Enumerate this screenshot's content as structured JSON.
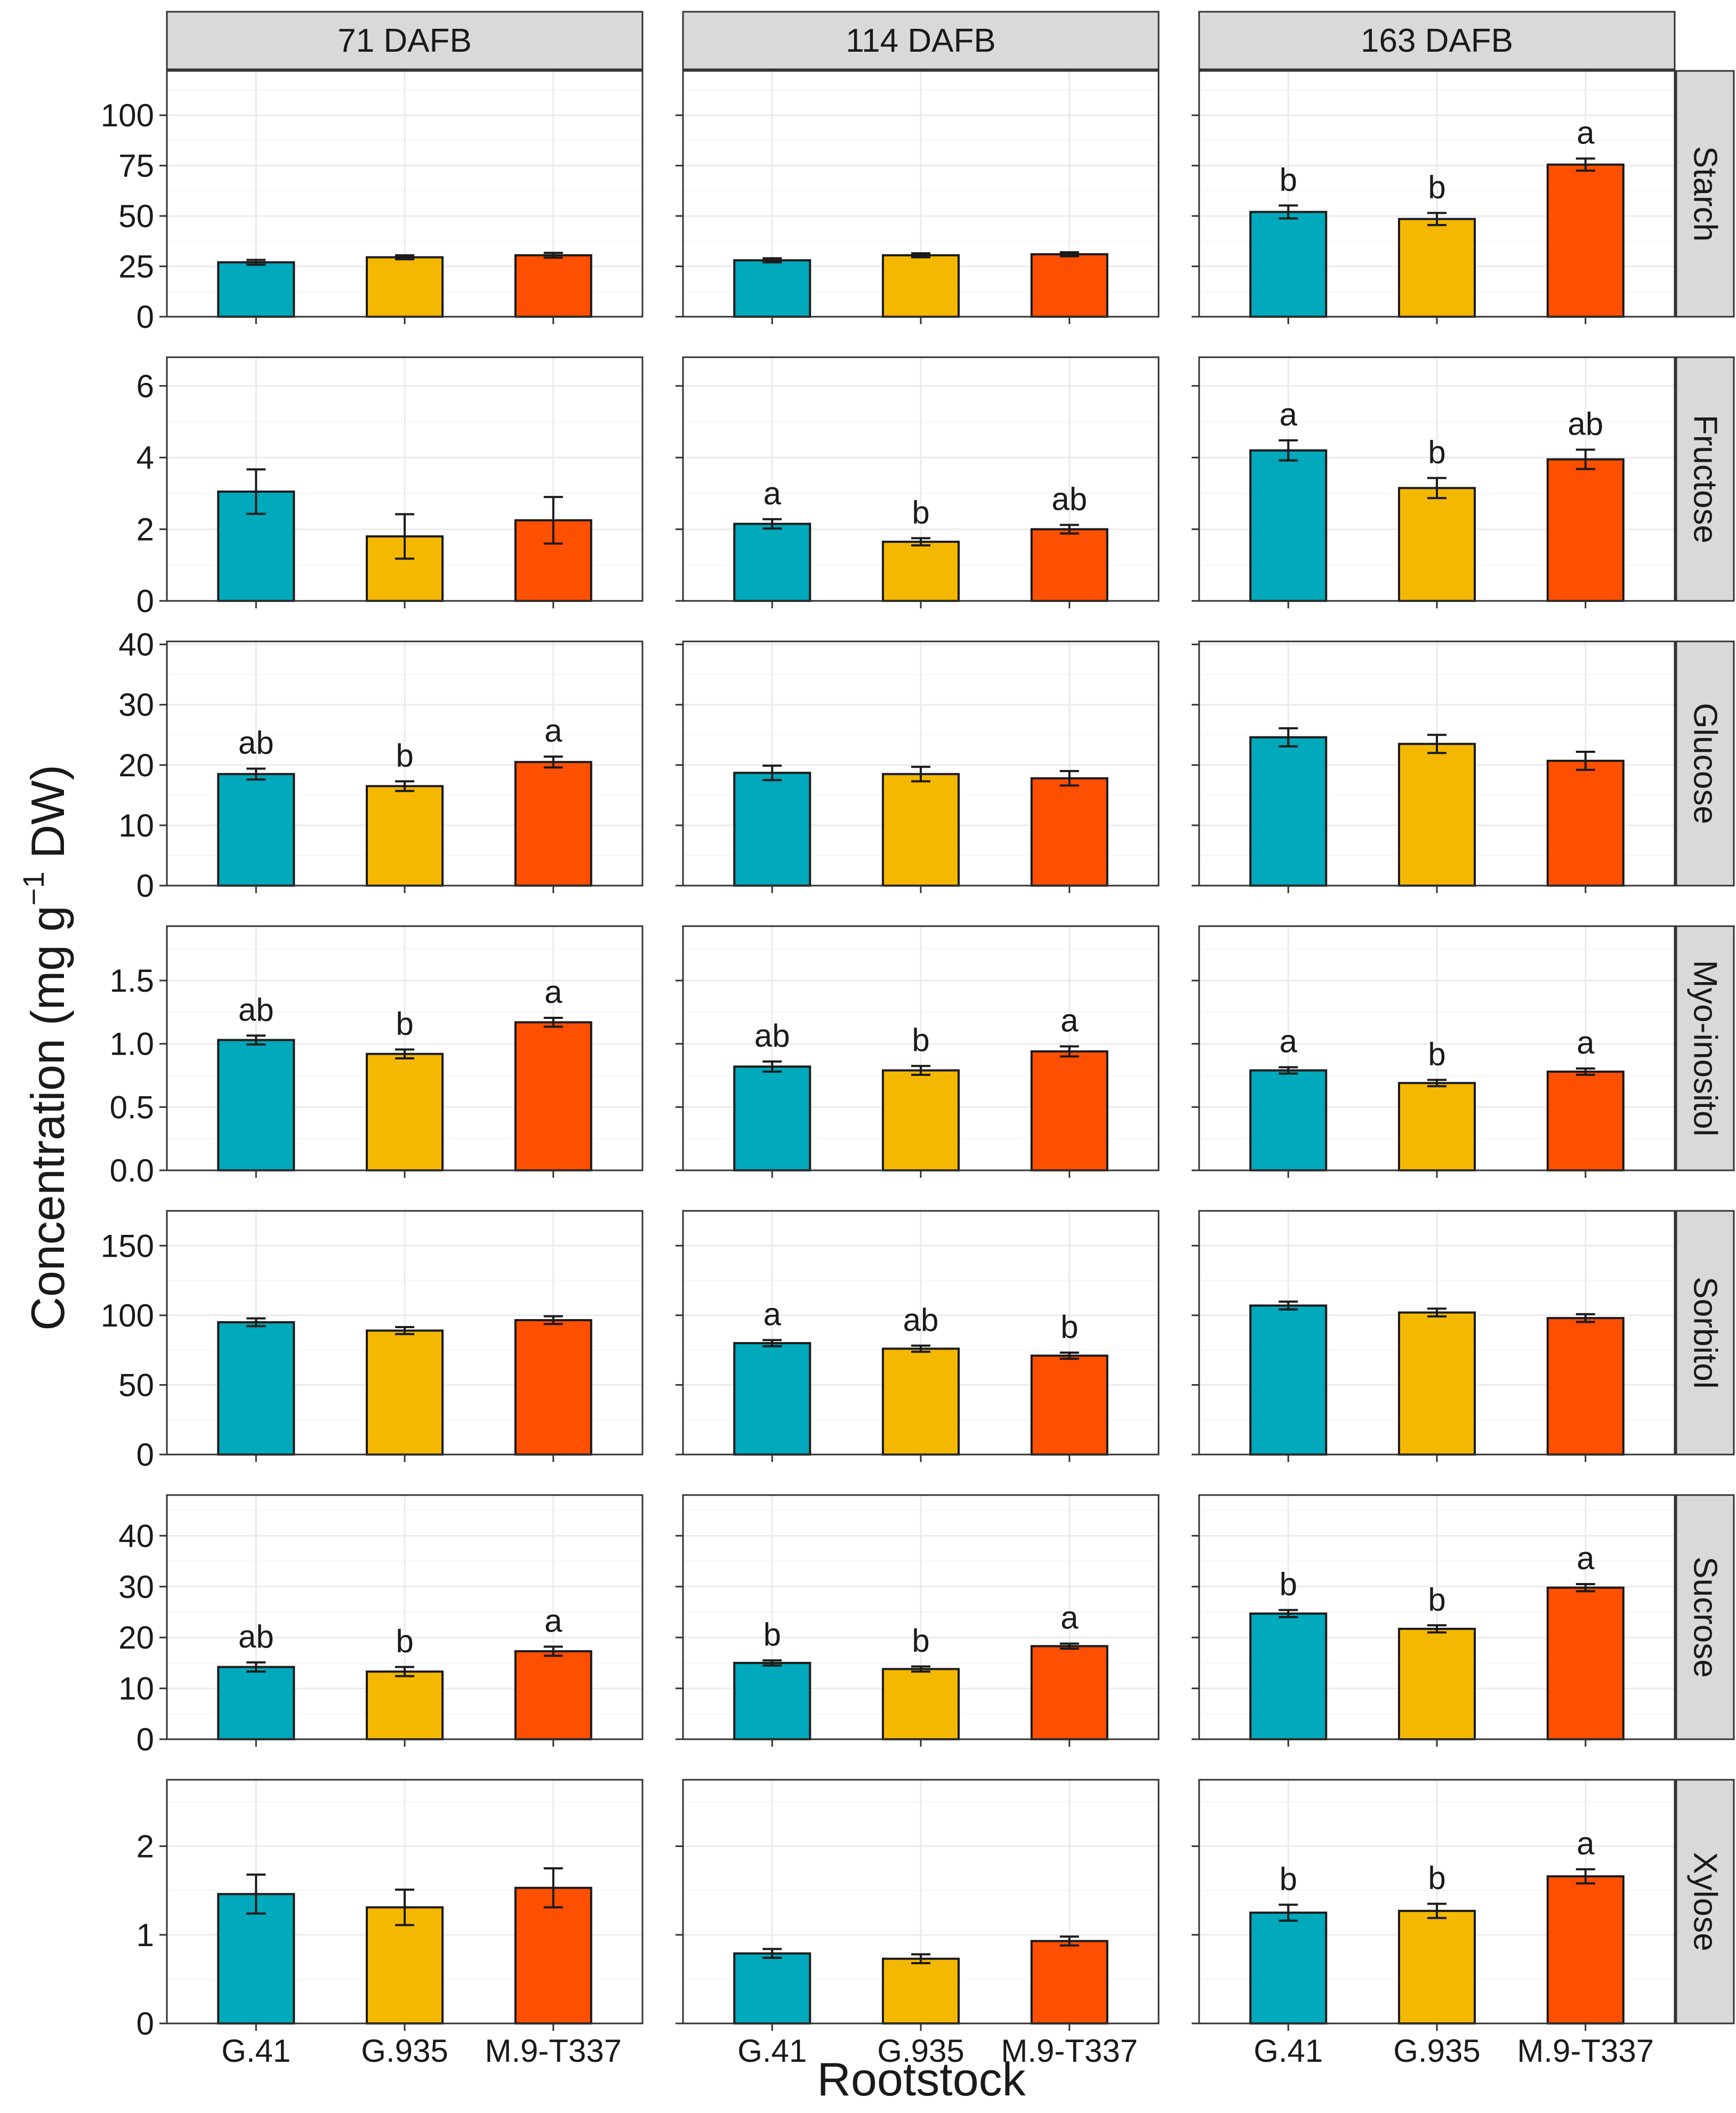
{
  "chart_data": {
    "type": "bar",
    "layout": "faceted-grid",
    "xlabel": "Rootstock",
    "ylabel": "Concentration (mg g",
    "ylabel_superscript": "−1",
    "ylabel_suffix": " DW)",
    "columns": [
      "71 DAFB",
      "114 DAFB",
      "163 DAFB"
    ],
    "categories": [
      "G.41",
      "G.935",
      "M.9-T337"
    ],
    "colors": {
      "G.41": "#00a9bb",
      "G.935": "#f5b800",
      "M.9-T337": "#ff4f00"
    },
    "rows": [
      {
        "name": "Starch",
        "ylim": [
          0,
          122
        ],
        "yticks": [
          0,
          25,
          50,
          75,
          100
        ],
        "ytick_labels": [
          "0",
          "25",
          "50",
          "75",
          "100"
        ],
        "panels": [
          {
            "column": "71 DAFB",
            "values": [
              27,
              29.5,
              30.5
            ],
            "errors": [
              1.2,
              1.0,
              1.2
            ],
            "labels": []
          },
          {
            "column": "114 DAFB",
            "values": [
              28,
              30.5,
              31
            ],
            "errors": [
              1.0,
              1.0,
              1.0
            ],
            "labels": []
          },
          {
            "column": "163 DAFB",
            "values": [
              52,
              48.5,
              75.5
            ],
            "errors": [
              3.2,
              3.0,
              3.0
            ],
            "labels": [
              "b",
              "b",
              "a"
            ]
          }
        ]
      },
      {
        "name": "Fructose",
        "ylim": [
          0,
          6.8
        ],
        "yticks": [
          0,
          2,
          4,
          6
        ],
        "ytick_labels": [
          "0",
          "2",
          "4",
          "6"
        ],
        "panels": [
          {
            "column": "71 DAFB",
            "values": [
              3.05,
              1.8,
              2.25
            ],
            "errors": [
              0.62,
              0.62,
              0.65
            ],
            "labels": []
          },
          {
            "column": "114 DAFB",
            "values": [
              2.15,
              1.65,
              2.0
            ],
            "errors": [
              0.13,
              0.1,
              0.12
            ],
            "labels": [
              "a",
              "b",
              "ab"
            ]
          },
          {
            "column": "163 DAFB",
            "values": [
              4.2,
              3.15,
              3.95
            ],
            "errors": [
              0.28,
              0.28,
              0.27
            ],
            "labels": [
              "a",
              "b",
              "ab"
            ]
          }
        ]
      },
      {
        "name": "Glucose",
        "ylim": [
          0,
          40.5
        ],
        "yticks": [
          0,
          10,
          20,
          30,
          40
        ],
        "ytick_labels": [
          "0",
          "10",
          "20",
          "30",
          "40"
        ],
        "panels": [
          {
            "column": "71 DAFB",
            "values": [
              18.5,
              16.5,
              20.5
            ],
            "errors": [
              0.9,
              0.8,
              0.9
            ],
            "labels": [
              "ab",
              "b",
              "a"
            ]
          },
          {
            "column": "114 DAFB",
            "values": [
              18.7,
              18.5,
              17.8
            ],
            "errors": [
              1.2,
              1.2,
              1.2
            ],
            "labels": []
          },
          {
            "column": "163 DAFB",
            "values": [
              24.6,
              23.5,
              20.7
            ],
            "errors": [
              1.5,
              1.5,
              1.5
            ],
            "labels": []
          }
        ]
      },
      {
        "name": "Myo-inositol",
        "ylim": [
          0,
          1.93
        ],
        "yticks": [
          0.0,
          0.5,
          1.0,
          1.5
        ],
        "ytick_labels": [
          "0.0",
          "0.5",
          "1.0",
          "1.5"
        ],
        "panels": [
          {
            "column": "71 DAFB",
            "values": [
              1.03,
              0.92,
              1.17
            ],
            "errors": [
              0.035,
              0.035,
              0.035
            ],
            "labels": [
              "ab",
              "b",
              "a"
            ]
          },
          {
            "column": "114 DAFB",
            "values": [
              0.82,
              0.79,
              0.94
            ],
            "errors": [
              0.04,
              0.035,
              0.04
            ],
            "labels": [
              "ab",
              "b",
              "a"
            ]
          },
          {
            "column": "163 DAFB",
            "values": [
              0.79,
              0.69,
              0.78
            ],
            "errors": [
              0.025,
              0.025,
              0.025
            ],
            "labels": [
              "a",
              "b",
              "a"
            ]
          }
        ]
      },
      {
        "name": "Sorbitol",
        "ylim": [
          0,
          175
        ],
        "yticks": [
          0,
          50,
          100,
          150
        ],
        "ytick_labels": [
          "0",
          "50",
          "100",
          "150"
        ],
        "panels": [
          {
            "column": "71 DAFB",
            "values": [
              95,
              89,
              96.5
            ],
            "errors": [
              2.8,
              2.5,
              2.8
            ],
            "labels": []
          },
          {
            "column": "114 DAFB",
            "values": [
              80,
              76,
              71
            ],
            "errors": [
              2.2,
              2.2,
              2.2
            ],
            "labels": [
              "a",
              "ab",
              "b"
            ]
          },
          {
            "column": "163 DAFB",
            "values": [
              107,
              102,
              98
            ],
            "errors": [
              2.8,
              2.8,
              2.8
            ],
            "labels": []
          }
        ]
      },
      {
        "name": "Sucrose",
        "ylim": [
          0,
          48
        ],
        "yticks": [
          0,
          10,
          20,
          30,
          40
        ],
        "ytick_labels": [
          "0",
          "10",
          "20",
          "30",
          "40"
        ],
        "panels": [
          {
            "column": "71 DAFB",
            "values": [
              14.2,
              13.3,
              17.3
            ],
            "errors": [
              0.9,
              0.9,
              0.9
            ],
            "labels": [
              "ab",
              "b",
              "a"
            ]
          },
          {
            "column": "114 DAFB",
            "values": [
              15,
              13.8,
              18.3
            ],
            "errors": [
              0.5,
              0.5,
              0.5
            ],
            "labels": [
              "b",
              "b",
              "a"
            ]
          },
          {
            "column": "163 DAFB",
            "values": [
              24.7,
              21.7,
              29.8
            ],
            "errors": [
              0.7,
              0.7,
              0.7
            ],
            "labels": [
              "b",
              "b",
              "a"
            ]
          }
        ]
      },
      {
        "name": "Xylose",
        "ylim": [
          0,
          2.75
        ],
        "yticks": [
          0,
          1,
          2
        ],
        "ytick_labels": [
          "0",
          "1",
          "2"
        ],
        "panels": [
          {
            "column": "71 DAFB",
            "values": [
              1.46,
              1.31,
              1.53
            ],
            "errors": [
              0.22,
              0.2,
              0.22
            ],
            "labels": []
          },
          {
            "column": "114 DAFB",
            "values": [
              0.79,
              0.73,
              0.93
            ],
            "errors": [
              0.05,
              0.05,
              0.05
            ],
            "labels": []
          },
          {
            "column": "163 DAFB",
            "values": [
              1.25,
              1.27,
              1.66
            ],
            "errors": [
              0.09,
              0.08,
              0.08
            ],
            "labels": [
              "b",
              "b",
              "a"
            ]
          }
        ]
      }
    ]
  }
}
